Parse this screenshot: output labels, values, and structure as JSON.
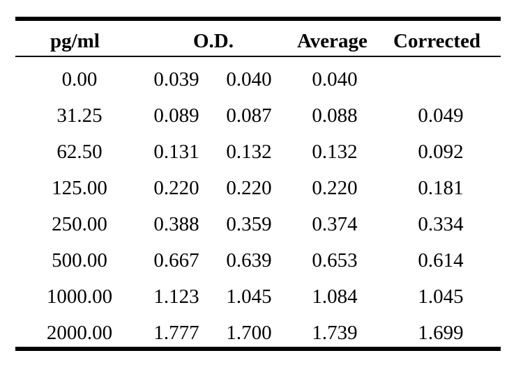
{
  "headers": {
    "pg": "pg/ml",
    "od": "O.D.",
    "avg": "Average",
    "cor": "Corrected"
  },
  "rows": [
    {
      "pg": "0.00",
      "od1": "0.039",
      "od2": "0.040",
      "avg": "0.040",
      "cor": ""
    },
    {
      "pg": "31.25",
      "od1": "0.089",
      "od2": "0.087",
      "avg": "0.088",
      "cor": "0.049"
    },
    {
      "pg": "62.50",
      "od1": "0.131",
      "od2": "0.132",
      "avg": "0.132",
      "cor": "0.092"
    },
    {
      "pg": "125.00",
      "od1": "0.220",
      "od2": "0.220",
      "avg": "0.220",
      "cor": "0.181"
    },
    {
      "pg": "250.00",
      "od1": "0.388",
      "od2": "0.359",
      "avg": "0.374",
      "cor": "0.334"
    },
    {
      "pg": "500.00",
      "od1": "0.667",
      "od2": "0.639",
      "avg": "0.653",
      "cor": "0.614"
    },
    {
      "pg": "1000.00",
      "od1": "1.123",
      "od2": "1.045",
      "avg": "1.084",
      "cor": "1.045"
    },
    {
      "pg": "2000.00",
      "od1": "1.777",
      "od2": "1.700",
      "avg": "1.739",
      "cor": "1.699"
    }
  ]
}
